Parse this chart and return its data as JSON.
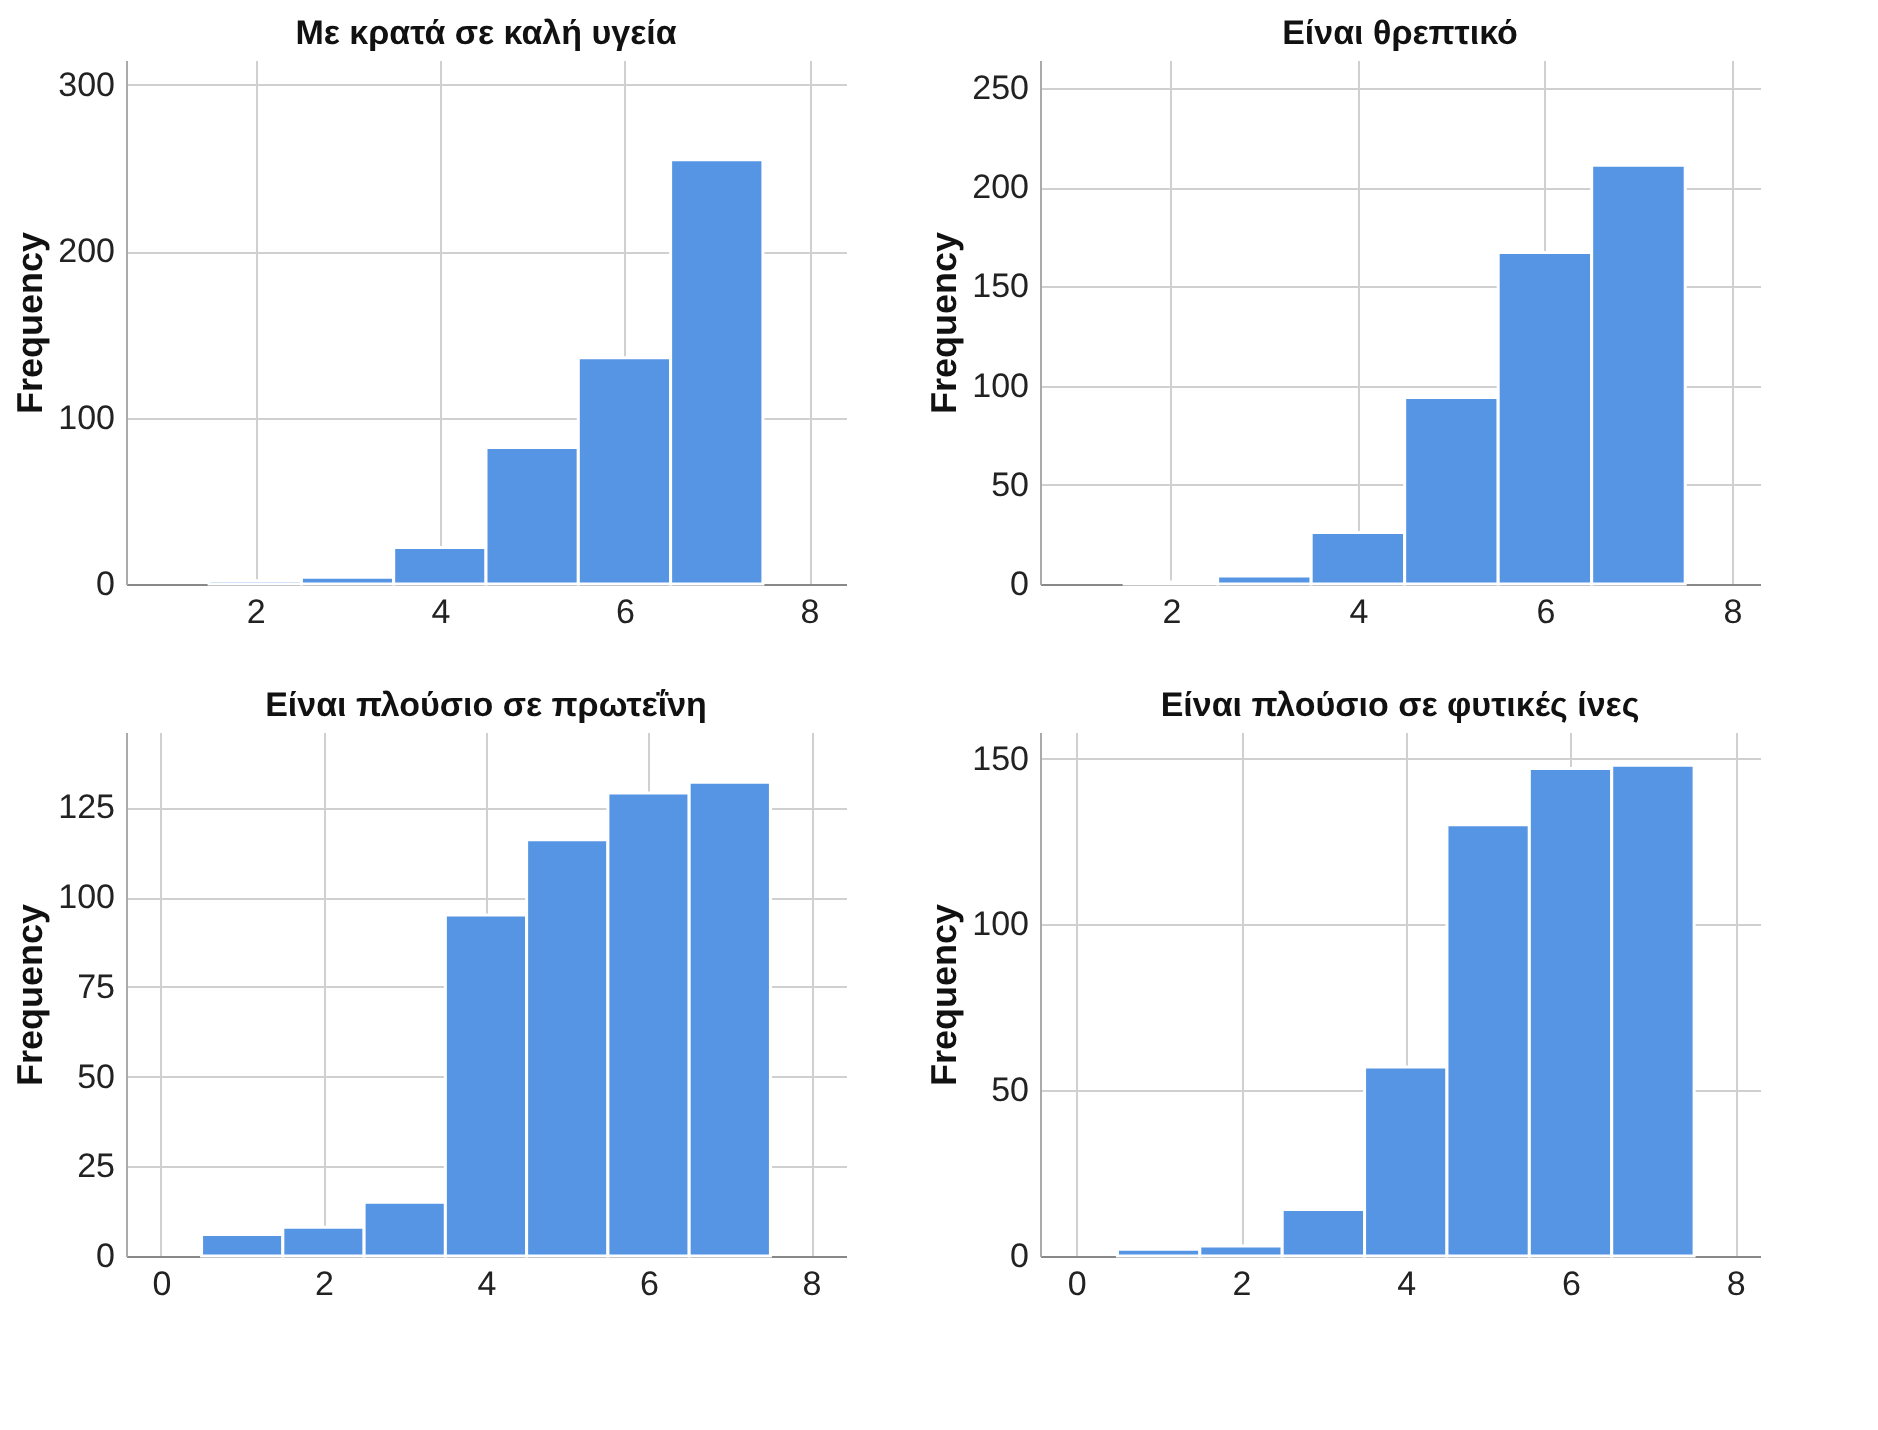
{
  "chart_data": [
    {
      "type": "histogram",
      "title": "Με κρατά σε καλή υγεία",
      "ylabel": "Frequency",
      "bins": [
        1.5,
        2.5,
        3.5,
        4.5,
        5.5,
        6.5,
        7.5
      ],
      "values": [
        2,
        4,
        22,
        82,
        136,
        255
      ],
      "color": "#5694e4",
      "xlim": [
        0.6,
        8.4
      ],
      "xticks": [
        2,
        4,
        6,
        8
      ],
      "ylim": [
        0,
        315
      ],
      "yticks": [
        0,
        100,
        200,
        300
      ],
      "grid": true
    },
    {
      "type": "histogram",
      "title": "Είναι θρεπτικό",
      "ylabel": "Frequency",
      "bins": [
        1.5,
        2.5,
        3.5,
        4.5,
        5.5,
        6.5,
        7.5
      ],
      "values": [
        1,
        4,
        26,
        94,
        167,
        211
      ],
      "color": "#5694e4",
      "xlim": [
        0.6,
        8.3
      ],
      "xticks": [
        2,
        4,
        6,
        8
      ],
      "ylim": [
        0,
        264
      ],
      "yticks": [
        0,
        50,
        100,
        150,
        200,
        250
      ],
      "grid": true
    },
    {
      "type": "histogram",
      "title": "Είναι πλούσιο σε πρωτεΐνη",
      "ylabel": "Frequency",
      "bins": [
        0.5,
        1.5,
        2.5,
        3.5,
        4.5,
        5.5,
        6.5,
        7.5
      ],
      "values": [
        6,
        8,
        15,
        95,
        116,
        129,
        132
      ],
      "color": "#5694e4",
      "xlim": [
        -0.43,
        8.43
      ],
      "xticks": [
        0,
        2,
        4,
        6,
        8
      ],
      "ylim": [
        0,
        146
      ],
      "yticks": [
        0,
        25,
        50,
        75,
        100,
        125
      ],
      "grid": true
    },
    {
      "type": "histogram",
      "title": "Είναι πλούσιο σε φυτικές ίνες",
      "ylabel": "Frequency",
      "bins": [
        0.5,
        1.5,
        2.5,
        3.5,
        4.5,
        5.5,
        6.5,
        7.5
      ],
      "values": [
        2,
        3,
        14,
        57,
        130,
        147,
        148
      ],
      "color": "#5694e4",
      "xlim": [
        -0.44,
        8.3
      ],
      "xticks": [
        0,
        2,
        4,
        6,
        8
      ],
      "ylim": [
        0,
        158
      ],
      "yticks": [
        0,
        50,
        100,
        150
      ],
      "grid": true
    }
  ]
}
